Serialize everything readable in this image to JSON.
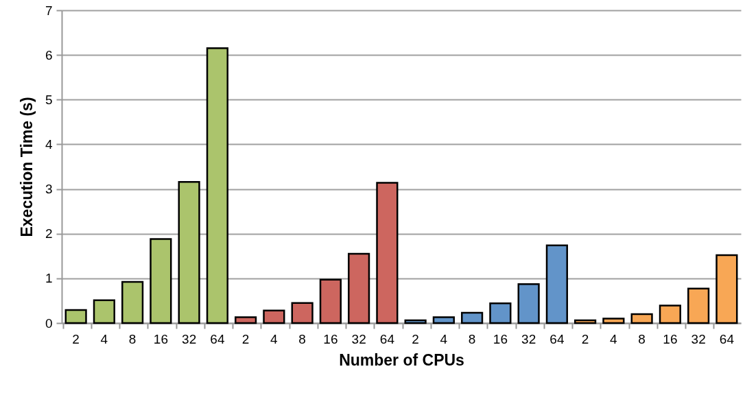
{
  "chart_data": {
    "type": "bar",
    "xlabel": "Number of CPUs",
    "ylabel": "Execution Time (s)",
    "categories": [
      "2",
      "4",
      "8",
      "16",
      "32",
      "64",
      "2",
      "4",
      "8",
      "16",
      "32",
      "64",
      "2",
      "4",
      "8",
      "16",
      "32",
      "64",
      "2",
      "4",
      "8",
      "16",
      "32",
      "64"
    ],
    "values": [
      0.29,
      0.51,
      0.92,
      1.88,
      3.16,
      6.15,
      0.13,
      0.28,
      0.45,
      0.97,
      1.55,
      3.14,
      0.06,
      0.13,
      0.23,
      0.44,
      0.87,
      1.74,
      0.06,
      0.1,
      0.2,
      0.39,
      0.77,
      1.52
    ],
    "colors": [
      "#abc46c",
      "#abc46c",
      "#abc46c",
      "#abc46c",
      "#abc46c",
      "#abc46c",
      "#cd665f",
      "#cd665f",
      "#cd665f",
      "#cd665f",
      "#cd665f",
      "#cd665f",
      "#6294c9",
      "#6294c9",
      "#6294c9",
      "#6294c9",
      "#6294c9",
      "#6294c9",
      "#f8a755",
      "#f8a755",
      "#f8a755",
      "#f8a755",
      "#f8a755",
      "#f8a755"
    ],
    "ylim": [
      0,
      7
    ],
    "yticks": [
      0,
      1,
      2,
      3,
      4,
      5,
      6,
      7
    ],
    "grid": "y"
  }
}
